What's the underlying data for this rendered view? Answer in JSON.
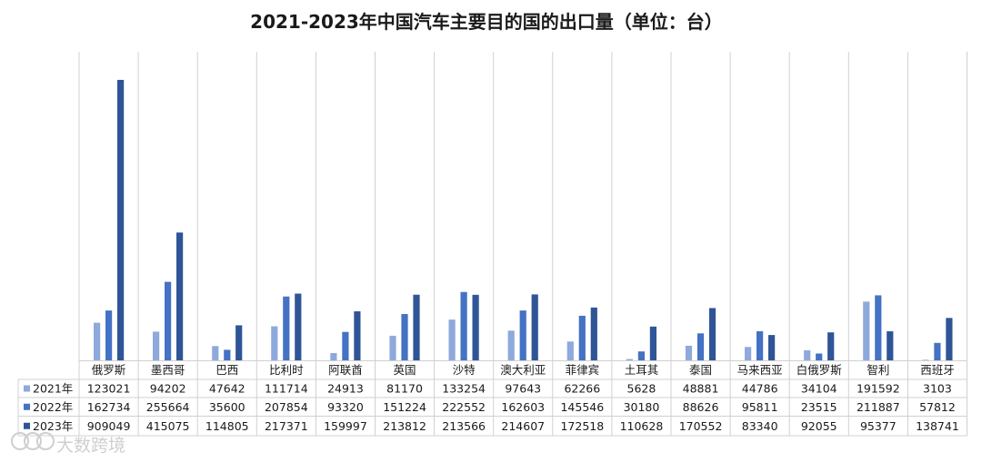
{
  "colors": {
    "2021": "#8ea9db",
    "2022": "#4472c4",
    "2023": "#2f5597"
  },
  "watermark": "大数跨境",
  "chart_data": {
    "type": "bar",
    "title": "2021-2023年中国汽车主要目的国的出口量（单位：台）",
    "categories": [
      "俄罗斯",
      "墨西哥",
      "巴西",
      "比利时",
      "阿联酋",
      "英国",
      "沙特",
      "澳大利亚",
      "菲律宾",
      "土耳其",
      "泰国",
      "马来西亚",
      "白俄罗斯",
      "智利",
      "西班牙"
    ],
    "series": [
      {
        "name": "2021年",
        "values": [
          123021,
          94202,
          47642,
          111714,
          24913,
          81170,
          133254,
          97643,
          62266,
          5628,
          48881,
          44786,
          34104,
          191592,
          3103
        ]
      },
      {
        "name": "2022年",
        "values": [
          162734,
          255664,
          35600,
          207854,
          93320,
          151224,
          222552,
          162603,
          145546,
          30180,
          88626,
          95811,
          23515,
          211887,
          57812
        ]
      },
      {
        "name": "2023年",
        "values": [
          909049,
          415075,
          114805,
          217371,
          159997,
          213812,
          213566,
          214607,
          172518,
          110628,
          170552,
          83340,
          92055,
          95377,
          138741
        ]
      }
    ],
    "ylim": [
      0,
      950000
    ],
    "legend": "data-table",
    "grid": false
  }
}
